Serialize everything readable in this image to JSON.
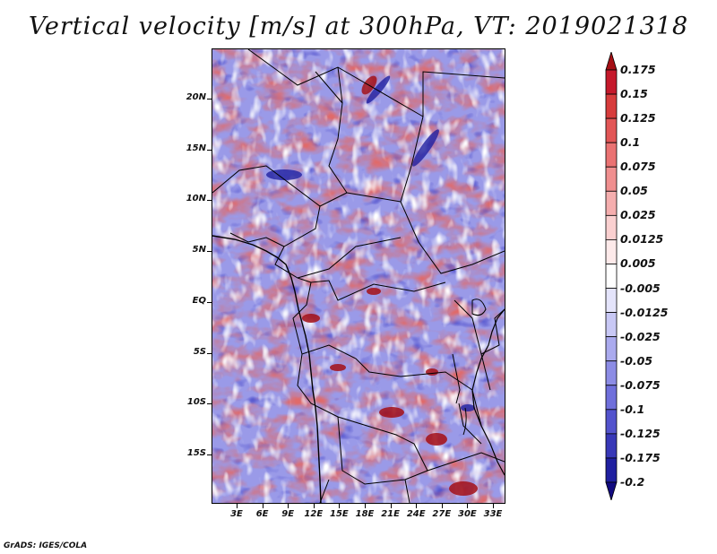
{
  "title": "Vertical velocity [m/s] at 300hPa, VT: 2019021318",
  "credit": "GrADS: IGES/COLA",
  "lat_labels": [
    "20N",
    "15N",
    "10N",
    "5N",
    "EQ",
    "5S",
    "10S",
    "15S"
  ],
  "lon_labels": [
    "3E",
    "6E",
    "9E",
    "12E",
    "15E",
    "18E",
    "21E",
    "24E",
    "27E",
    "30E",
    "33E"
  ],
  "colorbar": {
    "levels": [
      "0.175",
      "0.15",
      "0.125",
      "0.1",
      "0.075",
      "0.05",
      "0.025",
      "0.0125",
      "0.005",
      "-0.005",
      "-0.0125",
      "-0.025",
      "-0.05",
      "-0.075",
      "-0.1",
      "-0.125",
      "-0.175",
      "-0.2"
    ],
    "colors": [
      "#a50f15",
      "#c5192b",
      "#d73c3c",
      "#e25656",
      "#ea7272",
      "#f08f8f",
      "#f5aeae",
      "#fad0d0",
      "#fdeaea",
      "#ffffff",
      "#e4e4fb",
      "#c8c8f5",
      "#aaaaee",
      "#8c8ce5",
      "#6f6fdb",
      "#5353cd",
      "#3838b8",
      "#2020a0",
      "#120b80"
    ]
  }
}
